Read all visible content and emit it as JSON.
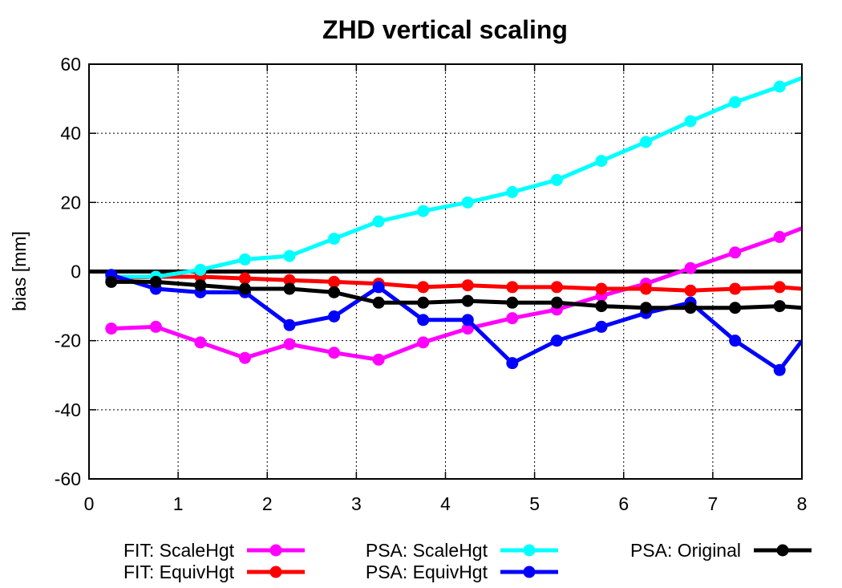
{
  "chart_data": {
    "type": "line",
    "title": "ZHD vertical scaling",
    "xlabel": "",
    "ylabel": "bias [mm]",
    "xlim": [
      0,
      8
    ],
    "ylim": [
      -60,
      60
    ],
    "xticks": [
      "0",
      "1",
      "2",
      "3",
      "4",
      "5",
      "6",
      "7",
      "8"
    ],
    "yticks": [
      "60",
      "40",
      "20",
      "0",
      "-20",
      "-40",
      "-60"
    ],
    "grid": true,
    "legend_position": "bottom",
    "series": [
      {
        "name": "FIT: ScaleHgt",
        "color": "#ff00ff",
        "x": [
          0.25,
          0.75,
          1.25,
          1.75,
          2.25,
          2.75,
          3.25,
          3.75,
          4.25,
          4.75,
          5.25,
          5.75,
          6.25,
          6.75,
          7.25,
          7.75,
          8.0
        ],
        "y": [
          -16.5,
          -16,
          -20.5,
          -25,
          -21,
          -23.5,
          -25.5,
          -20.5,
          -16.5,
          -13.5,
          -11,
          -7,
          -3.5,
          1,
          5.5,
          10,
          12.5
        ]
      },
      {
        "name": "FIT: EquivHgt",
        "color": "#ff0000",
        "x": [
          0.25,
          0.75,
          1.25,
          1.75,
          2.25,
          2.75,
          3.25,
          3.75,
          4.25,
          4.75,
          5.25,
          5.75,
          6.25,
          6.75,
          7.25,
          7.75,
          8.0
        ],
        "y": [
          -2,
          -1.5,
          -1.5,
          -2,
          -2.5,
          -3,
          -3.5,
          -4.5,
          -4,
          -4.5,
          -4.5,
          -5,
          -5,
          -5.5,
          -5,
          -4.5,
          -5
        ]
      },
      {
        "name": "PSA: ScaleHgt",
        "color": "#00ffff",
        "x": [
          0.25,
          0.75,
          1.25,
          1.75,
          2.25,
          2.75,
          3.25,
          3.75,
          4.25,
          4.75,
          5.25,
          5.75,
          6.25,
          6.75,
          7.25,
          7.75,
          8.0
        ],
        "y": [
          -1.5,
          -1.5,
          0.5,
          3.5,
          4.5,
          9.5,
          14.5,
          17.5,
          20,
          23,
          26.5,
          32,
          37.5,
          43.5,
          49,
          53.5,
          56
        ]
      },
      {
        "name": "PSA: EquivHgt",
        "color": "#0000ff",
        "x": [
          0.25,
          0.75,
          1.25,
          1.75,
          2.25,
          2.75,
          3.25,
          3.75,
          4.25,
          4.75,
          5.25,
          5.75,
          6.25,
          6.75,
          7.25,
          7.75,
          8.0
        ],
        "y": [
          -1,
          -5,
          -6,
          -6,
          -15.5,
          -13,
          -4.5,
          -14,
          -14,
          -26.5,
          -20,
          -16,
          -12,
          -9,
          -20,
          -28.5,
          -20
        ]
      },
      {
        "name": "PSA: Original",
        "color": "#000000",
        "x": [
          0.25,
          0.75,
          1.25,
          1.75,
          2.25,
          2.75,
          3.25,
          3.75,
          4.25,
          4.75,
          5.25,
          5.75,
          6.25,
          6.75,
          7.25,
          7.75,
          8.0
        ],
        "y": [
          -3,
          -3,
          -4,
          -5,
          -5,
          -6,
          -9,
          -9,
          -8.5,
          -9,
          -9,
          -10,
          -10.5,
          -10.5,
          -10.5,
          -10,
          -10.5
        ]
      }
    ]
  }
}
